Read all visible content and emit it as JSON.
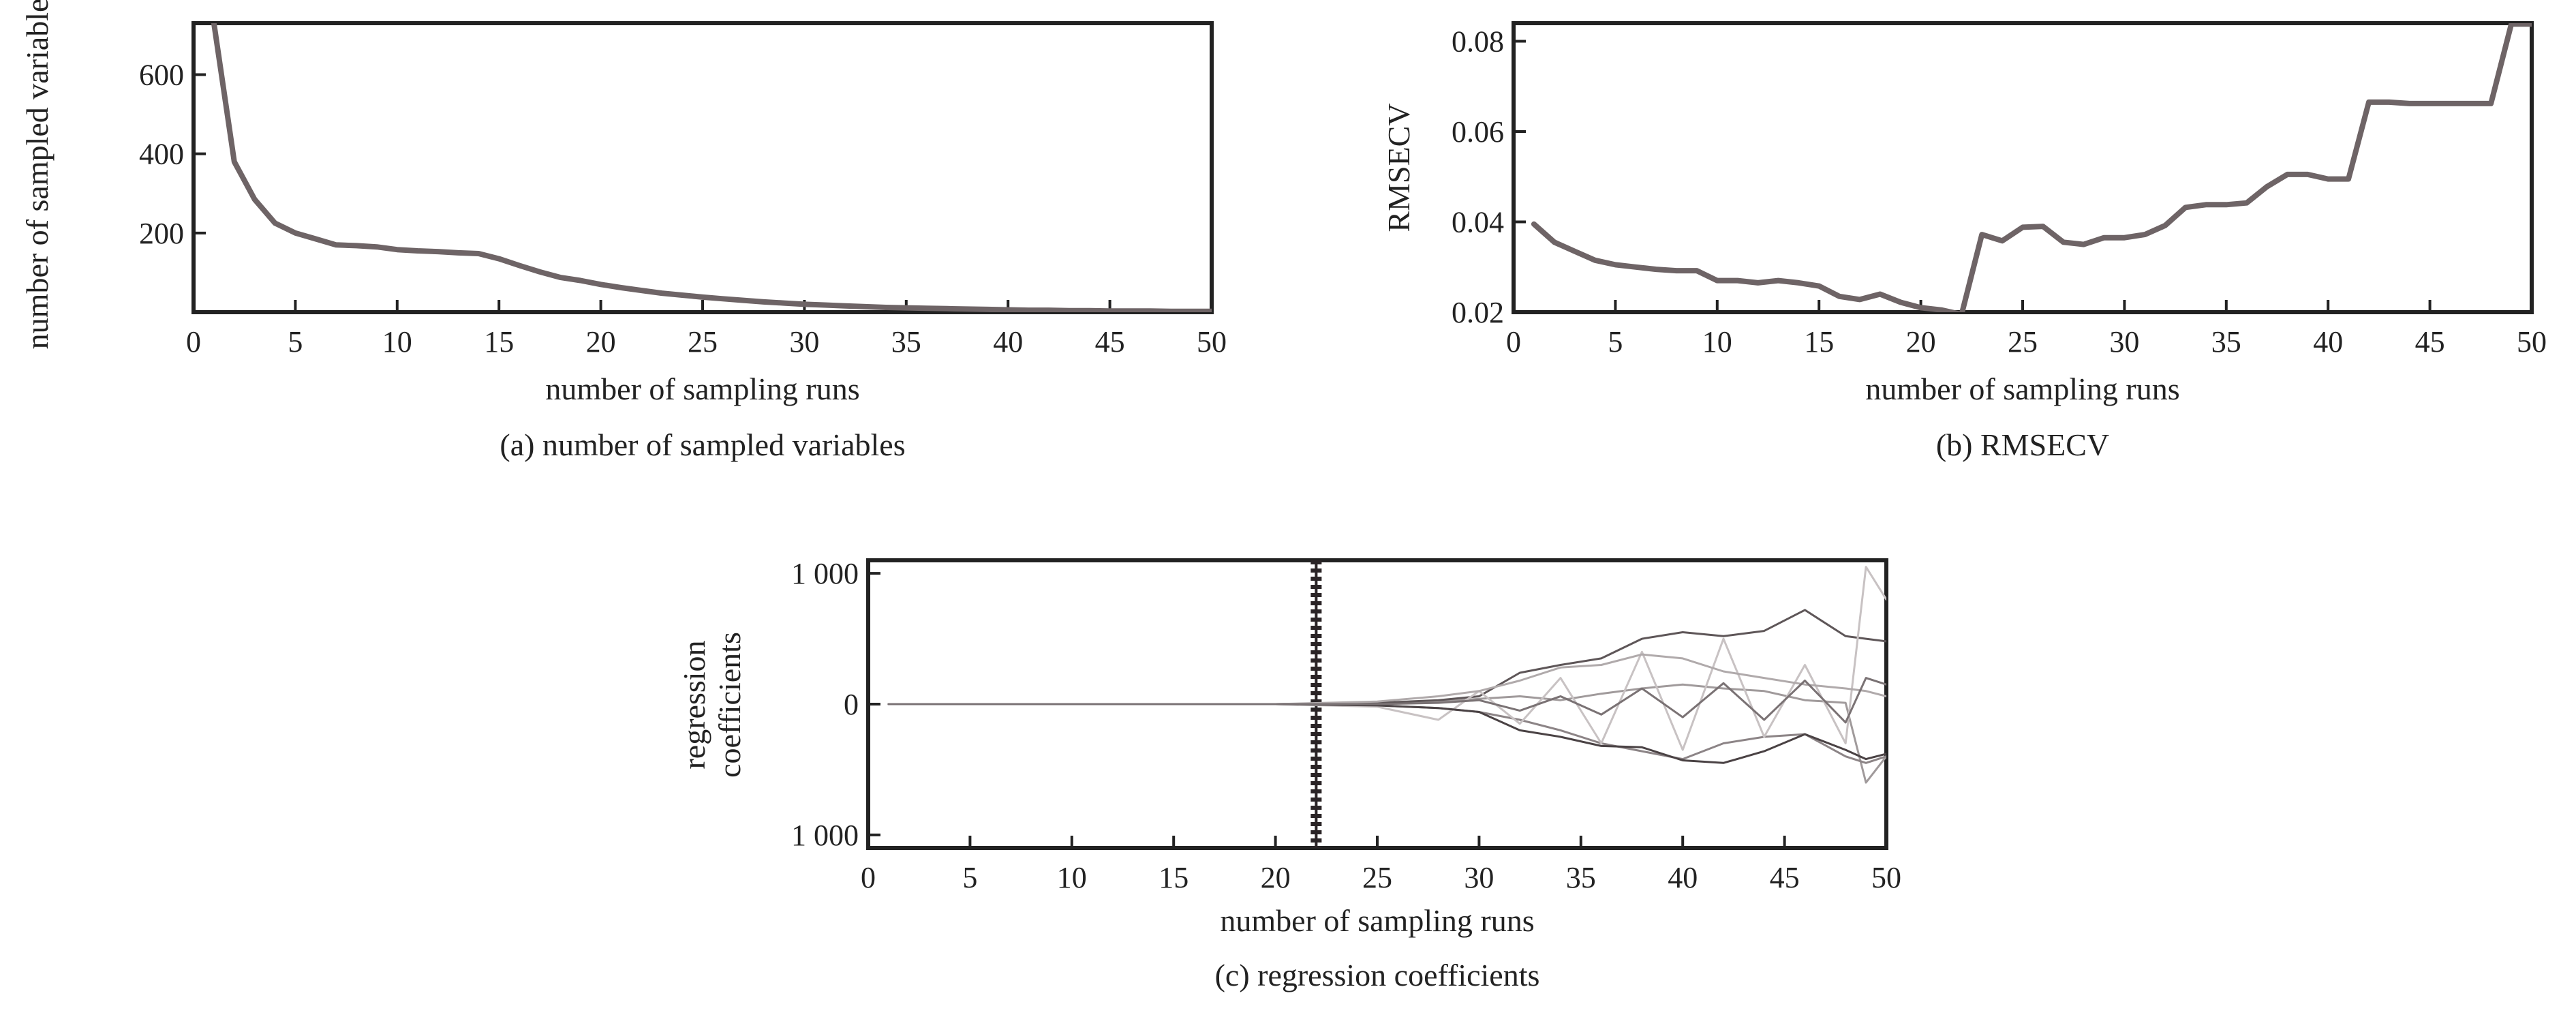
{
  "chart_data": [
    {
      "type": "line",
      "caption": "(a) number of sampled variables",
      "xlabel": "number of sampling runs",
      "ylabel": "number of sampled variables",
      "xlim": [
        0,
        50
      ],
      "ylim": [
        0,
        730
      ],
      "xticks": [
        0,
        5,
        10,
        15,
        20,
        25,
        30,
        35,
        40,
        45,
        50
      ],
      "yticks": [
        200,
        400,
        600
      ],
      "ytick_labels": [
        "200",
        "400",
        "600"
      ],
      "grid": false,
      "colors": [
        "#6e6466"
      ],
      "series": [
        {
          "x": [
            1,
            2,
            3,
            4,
            5,
            6,
            7,
            8,
            9,
            10,
            11,
            12,
            13,
            14,
            15,
            16,
            17,
            18,
            19,
            20,
            21,
            22,
            23,
            24,
            25,
            26,
            27,
            28,
            29,
            30,
            31,
            32,
            33,
            34,
            35,
            36,
            37,
            38,
            39,
            40,
            41,
            42,
            43,
            44,
            45,
            46,
            47,
            48,
            49,
            50
          ],
          "values": [
            730,
            380,
            285,
            225,
            200,
            185,
            170,
            168,
            165,
            158,
            155,
            153,
            150,
            148,
            135,
            118,
            102,
            88,
            80,
            70,
            62,
            55,
            48,
            43,
            38,
            34,
            30,
            26,
            23,
            20,
            18,
            16,
            14,
            12,
            11,
            10,
            9,
            8,
            7,
            6,
            5,
            5,
            4,
            4,
            3,
            3,
            3,
            2,
            2,
            2
          ]
        }
      ]
    },
    {
      "type": "line",
      "caption": "(b) RMSECV",
      "xlabel": "number of sampling runs",
      "ylabel": "RMSECV",
      "xlim": [
        0,
        50
      ],
      "ylim": [
        0.02,
        0.084
      ],
      "xticks": [
        0,
        5,
        10,
        15,
        20,
        25,
        30,
        35,
        40,
        45,
        50
      ],
      "yticks": [
        0.02,
        0.04,
        0.06,
        0.08
      ],
      "ytick_labels": [
        "0.02",
        "0.04",
        "0.06",
        "0.08"
      ],
      "grid": false,
      "colors": [
        "#6e6466"
      ],
      "series": [
        {
          "x": [
            1,
            2,
            3,
            4,
            5,
            6,
            7,
            8,
            9,
            10,
            11,
            12,
            13,
            14,
            15,
            16,
            17,
            18,
            19,
            20,
            21,
            22,
            23,
            24,
            25,
            26,
            27,
            28,
            29,
            30,
            31,
            32,
            33,
            34,
            35,
            36,
            37,
            38,
            39,
            40,
            41,
            42,
            43,
            44,
            45,
            46,
            47,
            48,
            49,
            50
          ],
          "values": [
            0.0395,
            0.0355,
            0.0335,
            0.0315,
            0.0305,
            0.03,
            0.0295,
            0.0292,
            0.0292,
            0.027,
            0.027,
            0.0265,
            0.027,
            0.0265,
            0.0258,
            0.0235,
            0.0228,
            0.024,
            0.0222,
            0.021,
            0.0205,
            0.0195,
            0.0372,
            0.0358,
            0.0388,
            0.039,
            0.0355,
            0.035,
            0.0365,
            0.0365,
            0.0372,
            0.0392,
            0.0432,
            0.0438,
            0.0438,
            0.0442,
            0.0478,
            0.0505,
            0.0505,
            0.0495,
            0.0495,
            0.0665,
            0.0665,
            0.0662,
            0.0662,
            0.0662,
            0.0662,
            0.0662,
            0.0838,
            0.0838
          ]
        }
      ]
    },
    {
      "type": "line",
      "caption": "(c) regression coefficients",
      "xlabel": "number of sampling runs",
      "ylabel": "regression coefficients",
      "xlim": [
        0,
        50
      ],
      "ylim": [
        -1100,
        1100
      ],
      "xticks": [
        0,
        5,
        10,
        15,
        20,
        25,
        30,
        35,
        40,
        45,
        50
      ],
      "yticks": [
        1000,
        0,
        -1000
      ],
      "ytick_labels": [
        "1 000",
        "0",
        "1 000"
      ],
      "grid": false,
      "marker_line_x": 22,
      "colors": [
        "#a09a9b",
        "#5e5658",
        "#8c8486",
        "#c8c2c3",
        "#4a4244",
        "#b0aaab",
        "#7a7274"
      ],
      "series": [
        {
          "x": [
            1,
            10,
            20,
            25,
            28,
            30,
            32,
            34,
            36,
            38,
            40,
            42,
            44,
            46,
            48,
            49,
            50
          ],
          "values": [
            0,
            0,
            0,
            10,
            20,
            40,
            60,
            30,
            80,
            120,
            150,
            120,
            100,
            30,
            10,
            -600,
            -400
          ]
        },
        {
          "x": [
            1,
            10,
            20,
            25,
            28,
            30,
            32,
            34,
            36,
            38,
            40,
            42,
            44,
            46,
            48,
            49,
            50
          ],
          "values": [
            0,
            0,
            0,
            10,
            30,
            60,
            240,
            300,
            350,
            500,
            550,
            520,
            560,
            720,
            520,
            500,
            480
          ]
        },
        {
          "x": [
            1,
            10,
            20,
            25,
            28,
            30,
            32,
            34,
            36,
            38,
            40,
            42,
            44,
            46,
            48,
            49,
            50
          ],
          "values": [
            0,
            0,
            0,
            -10,
            -30,
            -60,
            -120,
            -200,
            -300,
            -360,
            -420,
            -300,
            -250,
            -230,
            -400,
            -450,
            -400
          ]
        },
        {
          "x": [
            1,
            10,
            20,
            25,
            28,
            30,
            32,
            34,
            36,
            38,
            40,
            42,
            44,
            46,
            48,
            49,
            50
          ],
          "values": [
            0,
            0,
            0,
            -20,
            -120,
            100,
            -150,
            200,
            -300,
            400,
            -350,
            500,
            -250,
            300,
            -300,
            1050,
            800
          ]
        },
        {
          "x": [
            1,
            10,
            20,
            25,
            28,
            30,
            32,
            34,
            36,
            38,
            40,
            42,
            44,
            46,
            48,
            49,
            50
          ],
          "values": [
            0,
            0,
            0,
            -10,
            -30,
            -60,
            -200,
            -250,
            -320,
            -330,
            -430,
            -450,
            -360,
            -230,
            -350,
            -420,
            -380
          ]
        },
        {
          "x": [
            1,
            10,
            20,
            25,
            28,
            30,
            32,
            34,
            36,
            38,
            40,
            42,
            44,
            46,
            48,
            49,
            50
          ],
          "values": [
            0,
            0,
            0,
            20,
            60,
            100,
            180,
            280,
            300,
            380,
            350,
            250,
            200,
            150,
            120,
            100,
            60
          ]
        },
        {
          "x": [
            1,
            10,
            20,
            25,
            28,
            30,
            32,
            34,
            36,
            38,
            40,
            42,
            44,
            46,
            48,
            49,
            50
          ],
          "values": [
            0,
            0,
            0,
            0,
            10,
            30,
            -50,
            60,
            -80,
            120,
            -100,
            160,
            -120,
            180,
            -140,
            200,
            150
          ]
        }
      ]
    }
  ]
}
